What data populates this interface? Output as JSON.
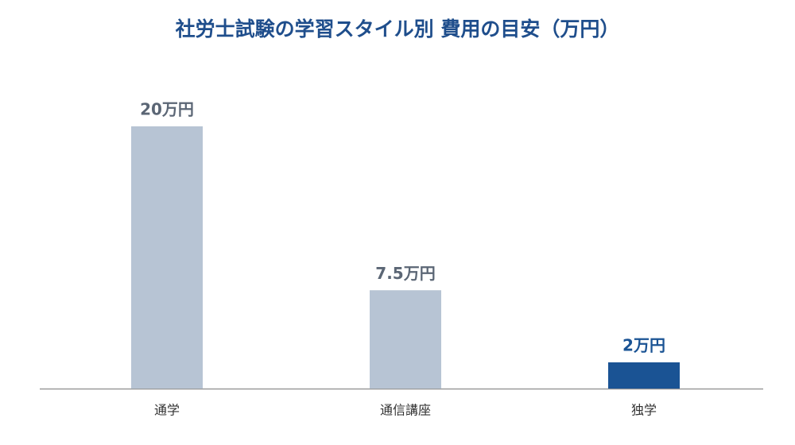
{
  "chart_data": {
    "type": "bar",
    "title": "社労士試験の学習スタイル別 費用の目安（万円）",
    "categories": [
      "通学",
      "通信講座",
      "独学"
    ],
    "values": [
      20,
      7.5,
      2
    ],
    "value_labels": [
      "20万円",
      "7.5万円",
      "2万円"
    ],
    "colors": [
      "#b7c4d4",
      "#b7c4d4",
      "#1a5394"
    ],
    "value_label_colors": [
      "#5b6675",
      "#5b6675",
      "#1a5394"
    ]
  }
}
